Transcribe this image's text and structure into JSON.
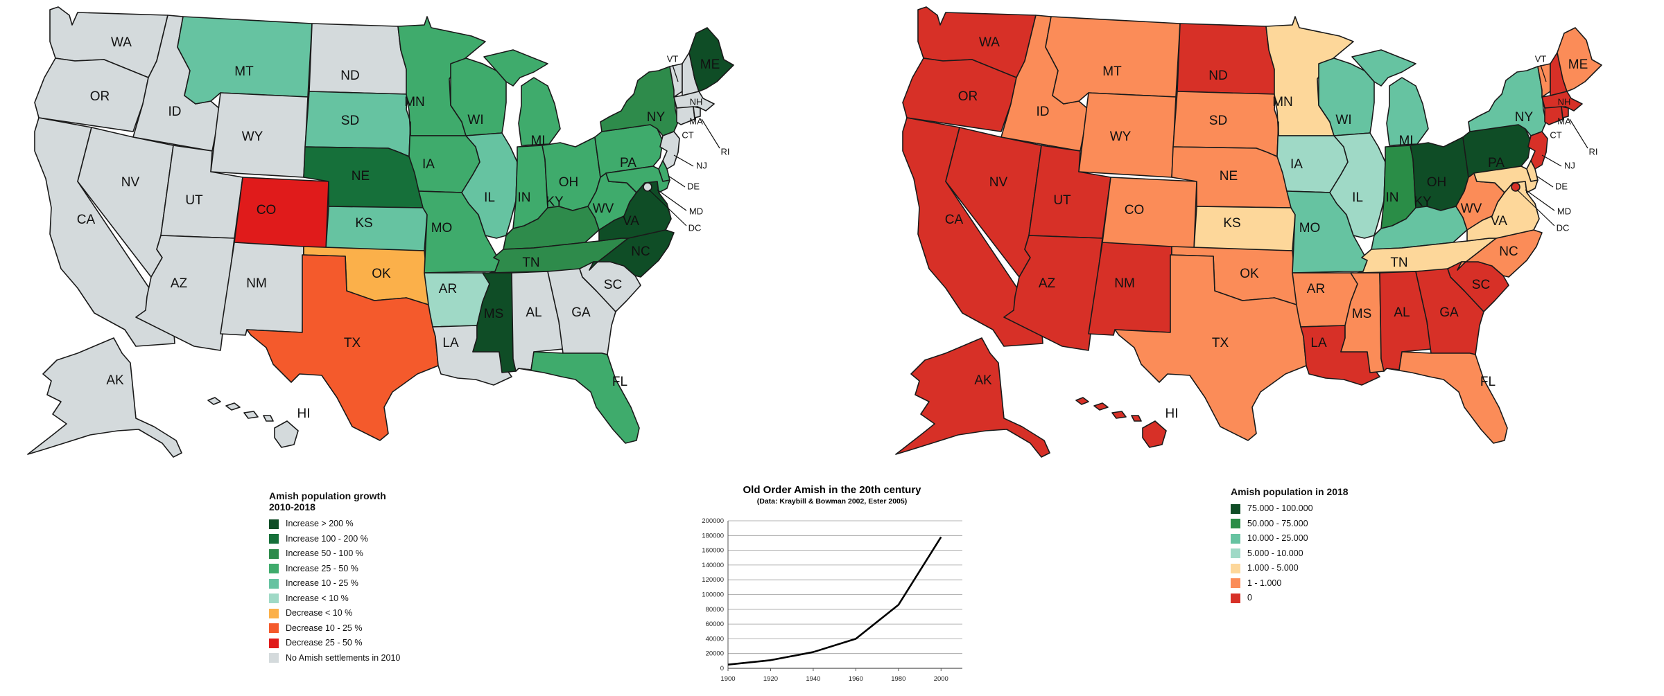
{
  "maps": {
    "growth": {
      "palette": {
        "gt200": "#0f4d26",
        "100_200": "#16703a",
        "50_100": "#2e8b4b",
        "25_50": "#3fab6c",
        "10_25": "#66c3a1",
        "lt10": "#9fd9c6",
        "dec_lt10": "#fbb04a",
        "dec_10_25": "#f45a2c",
        "dec_25_50": "#e01b1b",
        "none": "#d4dadc"
      },
      "states": [
        {
          "abbr": "WA",
          "cls": "none"
        },
        {
          "abbr": "OR",
          "cls": "none"
        },
        {
          "abbr": "CA",
          "cls": "none"
        },
        {
          "abbr": "ID",
          "cls": "none"
        },
        {
          "abbr": "NV",
          "cls": "none"
        },
        {
          "abbr": "UT",
          "cls": "none"
        },
        {
          "abbr": "AZ",
          "cls": "none"
        },
        {
          "abbr": "MT",
          "cls": "10_25"
        },
        {
          "abbr": "WY",
          "cls": "none"
        },
        {
          "abbr": "CO",
          "cls": "dec_25_50"
        },
        {
          "abbr": "NM",
          "cls": "none"
        },
        {
          "abbr": "ND",
          "cls": "none"
        },
        {
          "abbr": "SD",
          "cls": "10_25"
        },
        {
          "abbr": "NE",
          "cls": "100_200"
        },
        {
          "abbr": "KS",
          "cls": "10_25"
        },
        {
          "abbr": "OK",
          "cls": "dec_lt10"
        },
        {
          "abbr": "TX",
          "cls": "dec_10_25"
        },
        {
          "abbr": "MN",
          "cls": "25_50"
        },
        {
          "abbr": "IA",
          "cls": "25_50"
        },
        {
          "abbr": "MO",
          "cls": "25_50"
        },
        {
          "abbr": "AR",
          "cls": "lt10"
        },
        {
          "abbr": "LA",
          "cls": "none"
        },
        {
          "abbr": "WI",
          "cls": "25_50"
        },
        {
          "abbr": "IL",
          "cls": "10_25"
        },
        {
          "abbr": "MI",
          "cls": "25_50"
        },
        {
          "abbr": "IN",
          "cls": "25_50"
        },
        {
          "abbr": "OH",
          "cls": "25_50"
        },
        {
          "abbr": "KY",
          "cls": "50_100"
        },
        {
          "abbr": "TN",
          "cls": "50_100"
        },
        {
          "abbr": "MS",
          "cls": "gt200"
        },
        {
          "abbr": "AL",
          "cls": "none"
        },
        {
          "abbr": "GA",
          "cls": "none"
        },
        {
          "abbr": "FL",
          "cls": "25_50"
        },
        {
          "abbr": "SC",
          "cls": "none"
        },
        {
          "abbr": "NC",
          "cls": "gt200"
        },
        {
          "abbr": "VA",
          "cls": "gt200"
        },
        {
          "abbr": "WV",
          "cls": "25_50"
        },
        {
          "abbr": "PA",
          "cls": "25_50"
        },
        {
          "abbr": "NY",
          "cls": "50_100"
        },
        {
          "abbr": "VT",
          "cls": "none"
        },
        {
          "abbr": "NH",
          "cls": "none"
        },
        {
          "abbr": "ME",
          "cls": "gt200"
        },
        {
          "abbr": "MA",
          "cls": "none"
        },
        {
          "abbr": "CT",
          "cls": "none"
        },
        {
          "abbr": "RI",
          "cls": "none"
        },
        {
          "abbr": "NJ",
          "cls": "none"
        },
        {
          "abbr": "DE",
          "cls": "25_50"
        },
        {
          "abbr": "MD",
          "cls": "25_50"
        },
        {
          "abbr": "DC",
          "cls": "none"
        },
        {
          "abbr": "AK",
          "cls": "none"
        },
        {
          "abbr": "HI",
          "cls": "none"
        }
      ]
    },
    "population": {
      "palette": {
        "75k_100k": "#0f4d26",
        "50k_75k": "#2a8d47",
        "10k_25k": "#66c3a1",
        "5k_10k": "#9fd9c6",
        "1k_5k": "#fdd79a",
        "1_1k": "#fb8c58",
        "zero": "#d73027"
      },
      "states": [
        {
          "abbr": "WA",
          "cls": "zero"
        },
        {
          "abbr": "OR",
          "cls": "zero"
        },
        {
          "abbr": "CA",
          "cls": "zero"
        },
        {
          "abbr": "ID",
          "cls": "1_1k"
        },
        {
          "abbr": "NV",
          "cls": "zero"
        },
        {
          "abbr": "UT",
          "cls": "zero"
        },
        {
          "abbr": "AZ",
          "cls": "zero"
        },
        {
          "abbr": "MT",
          "cls": "1_1k"
        },
        {
          "abbr": "WY",
          "cls": "1_1k"
        },
        {
          "abbr": "CO",
          "cls": "1_1k"
        },
        {
          "abbr": "NM",
          "cls": "zero"
        },
        {
          "abbr": "ND",
          "cls": "zero"
        },
        {
          "abbr": "SD",
          "cls": "1_1k"
        },
        {
          "abbr": "NE",
          "cls": "1_1k"
        },
        {
          "abbr": "KS",
          "cls": "1k_5k"
        },
        {
          "abbr": "OK",
          "cls": "1_1k"
        },
        {
          "abbr": "TX",
          "cls": "1_1k"
        },
        {
          "abbr": "MN",
          "cls": "1k_5k"
        },
        {
          "abbr": "IA",
          "cls": "5k_10k"
        },
        {
          "abbr": "MO",
          "cls": "10k_25k"
        },
        {
          "abbr": "AR",
          "cls": "1_1k"
        },
        {
          "abbr": "LA",
          "cls": "zero"
        },
        {
          "abbr": "WI",
          "cls": "10k_25k"
        },
        {
          "abbr": "IL",
          "cls": "5k_10k"
        },
        {
          "abbr": "MI",
          "cls": "10k_25k"
        },
        {
          "abbr": "IN",
          "cls": "50k_75k"
        },
        {
          "abbr": "OH",
          "cls": "75k_100k"
        },
        {
          "abbr": "KY",
          "cls": "10k_25k"
        },
        {
          "abbr": "TN",
          "cls": "1k_5k"
        },
        {
          "abbr": "MS",
          "cls": "1_1k"
        },
        {
          "abbr": "AL",
          "cls": "zero"
        },
        {
          "abbr": "GA",
          "cls": "zero"
        },
        {
          "abbr": "FL",
          "cls": "1_1k"
        },
        {
          "abbr": "SC",
          "cls": "zero"
        },
        {
          "abbr": "NC",
          "cls": "1_1k"
        },
        {
          "abbr": "VA",
          "cls": "1k_5k"
        },
        {
          "abbr": "WV",
          "cls": "1_1k"
        },
        {
          "abbr": "PA",
          "cls": "75k_100k"
        },
        {
          "abbr": "NY",
          "cls": "10k_25k"
        },
        {
          "abbr": "VT",
          "cls": "1_1k"
        },
        {
          "abbr": "NH",
          "cls": "zero"
        },
        {
          "abbr": "ME",
          "cls": "1_1k"
        },
        {
          "abbr": "MA",
          "cls": "zero"
        },
        {
          "abbr": "CT",
          "cls": "zero"
        },
        {
          "abbr": "RI",
          "cls": "zero"
        },
        {
          "abbr": "NJ",
          "cls": "zero"
        },
        {
          "abbr": "DE",
          "cls": "1k_5k"
        },
        {
          "abbr": "MD",
          "cls": "1k_5k"
        },
        {
          "abbr": "DC",
          "cls": "zero"
        },
        {
          "abbr": "AK",
          "cls": "zero"
        },
        {
          "abbr": "HI",
          "cls": "zero"
        }
      ]
    }
  },
  "legend_growth": {
    "title": "Amish population growth 2010-2018",
    "items": [
      {
        "label": "Increase > 200 %",
        "color": "#0f4d26"
      },
      {
        "label": "Increase 100 - 200 %",
        "color": "#16703a"
      },
      {
        "label": "Increase 50 - 100 %",
        "color": "#2e8b4b"
      },
      {
        "label": "Increase 25 - 50 %",
        "color": "#3fab6c"
      },
      {
        "label": "Increase 10 - 25 %",
        "color": "#66c3a1"
      },
      {
        "label": "Increase < 10 %",
        "color": "#9fd9c6"
      },
      {
        "label": "Decrease < 10 %",
        "color": "#fbb04a"
      },
      {
        "label": "Decrease 10 - 25 %",
        "color": "#f45a2c"
      },
      {
        "label": "Decrease 25 - 50 %",
        "color": "#e01b1b"
      },
      {
        "label": "No Amish settlements in 2010",
        "color": "#d4dadc"
      }
    ]
  },
  "legend_population": {
    "title": "Amish population in 2018",
    "items": [
      {
        "label": "75.000 - 100.000",
        "color": "#0f4d26"
      },
      {
        "label": "50.000 - 75.000",
        "color": "#2a8d47"
      },
      {
        "label": "10.000 - 25.000",
        "color": "#66c3a1"
      },
      {
        "label": "5.000 - 10.000",
        "color": "#9fd9c6"
      },
      {
        "label": "1.000 - 5.000",
        "color": "#fdd79a"
      },
      {
        "label": "1 - 1.000",
        "color": "#fb8c58"
      },
      {
        "label": "0",
        "color": "#d73027"
      }
    ]
  },
  "chart_data": {
    "type": "line",
    "title": "Old Order Amish in the 20th century",
    "subtitle": "(Data: Kraybill & Bowman 2002, Ester 2005)",
    "x": [
      1900,
      1920,
      1940,
      1960,
      1980,
      2000
    ],
    "series": [
      {
        "values": [
          5000,
          11000,
          22000,
          40000,
          86000,
          178000
        ]
      }
    ],
    "xticks": [
      1900,
      1920,
      1940,
      1960,
      1980,
      2000
    ],
    "yticks": [
      0,
      20000,
      40000,
      60000,
      80000,
      100000,
      120000,
      140000,
      160000,
      180000,
      200000
    ],
    "xlim": [
      1900,
      2010
    ],
    "ylim": [
      0,
      200000
    ],
    "grid": true,
    "line_color": "#000000"
  }
}
